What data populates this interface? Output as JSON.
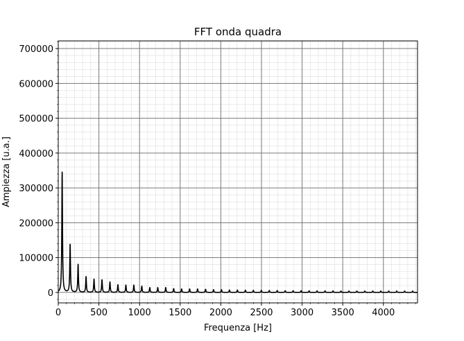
{
  "chart_data": {
    "type": "line",
    "title": "FFT onda quadra",
    "xlabel": "Frequenza [Hz]",
    "ylabel": "Ampiezza [u.a.]",
    "xlim": [
      0,
      4420
    ],
    "ylim": [
      -30000,
      722000
    ],
    "x_ticks": [
      0,
      500,
      1000,
      1500,
      2000,
      2500,
      3000,
      3500,
      4000
    ],
    "y_ticks": [
      0,
      100000,
      200000,
      300000,
      400000,
      500000,
      600000,
      700000
    ],
    "x_tick_labels": [
      "0",
      "500",
      "1000",
      "1500",
      "2000",
      "2500",
      "3000",
      "3500",
      "4000"
    ],
    "y_tick_labels": [
      "0",
      "100000",
      "200000",
      "300000",
      "400000",
      "500000",
      "600000",
      "700000"
    ],
    "grid": {
      "major": true,
      "minor": true
    },
    "line_color": "#000000",
    "series": [
      {
        "peaks_x": [
          48,
          146,
          244,
          342,
          440,
          538,
          636,
          734,
          832,
          930,
          1028,
          1126,
          1224,
          1322,
          1420,
          1518,
          1616,
          1714,
          1812,
          1910,
          2008,
          2106,
          2204,
          2302,
          2400,
          2498,
          2596,
          2694,
          2792,
          2890,
          2988,
          3086,
          3184,
          3282,
          3380,
          3478,
          3576,
          3674,
          3772,
          3870,
          3968,
          4066,
          4164,
          4262,
          4360
        ],
        "peaks_y": [
          345000,
          137000,
          80000,
          45000,
          38000,
          36000,
          30000,
          22000,
          21000,
          21000,
          18000,
          14000,
          14000,
          14000,
          11000,
          10000,
          10000,
          10000,
          9000,
          8000,
          8000,
          7000,
          7000,
          6500,
          6000,
          6000,
          5500,
          5500,
          5000,
          5000,
          5000,
          4500,
          4500,
          4500,
          4500,
          4000,
          4000,
          4000,
          4000,
          4000,
          4000,
          4000,
          4000,
          4000,
          4000
        ],
        "baseline": 0
      }
    ]
  },
  "colors": {
    "major_grid": "#777777",
    "minor_grid": "#dddddd",
    "axes": "#000000",
    "background": "#ffffff"
  }
}
